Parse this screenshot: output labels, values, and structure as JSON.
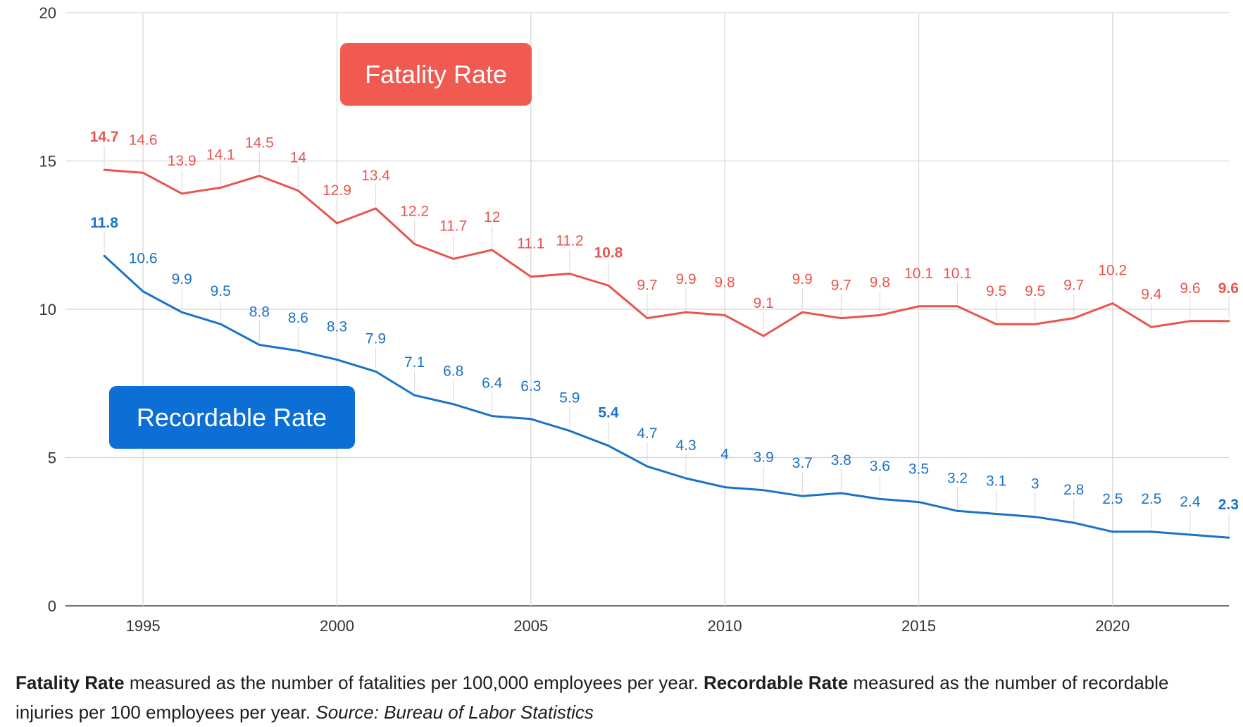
{
  "colors": {
    "fatality": "#e8554f",
    "recordable": "#1a73c8",
    "grid": "#d6d6d6",
    "axis": "#333333"
  },
  "chart_data": {
    "type": "line",
    "title": "",
    "xlabel": "",
    "ylabel": "",
    "x": [
      1994,
      1995,
      1996,
      1997,
      1998,
      1999,
      2000,
      2001,
      2002,
      2003,
      2004,
      2005,
      2006,
      2007,
      2008,
      2009,
      2010,
      2011,
      2012,
      2013,
      2014,
      2015,
      2016,
      2017,
      2018,
      2019,
      2020,
      2021,
      2022,
      2023
    ],
    "xlim": [
      1993,
      2023
    ],
    "ylim": [
      0,
      20
    ],
    "x_ticks": [
      1995,
      2000,
      2005,
      2010,
      2015,
      2020
    ],
    "y_ticks": [
      0,
      5,
      10,
      15,
      20
    ],
    "grid": true,
    "series": [
      {
        "name": "Fatality Rate",
        "color": "#e8554f",
        "values": [
          14.7,
          14.6,
          13.9,
          14.1,
          14.5,
          14,
          12.9,
          13.4,
          12.2,
          11.7,
          12,
          11.1,
          11.2,
          10.8,
          9.7,
          9.9,
          9.8,
          9.1,
          9.9,
          9.7,
          9.8,
          10.1,
          10.1,
          9.5,
          9.5,
          9.7,
          10.2,
          9.4,
          9.6,
          9.6
        ],
        "bold_labels": [
          1994,
          2007,
          2023
        ]
      },
      {
        "name": "Recordable Rate",
        "color": "#1a73c8",
        "values": [
          11.8,
          10.6,
          9.9,
          9.5,
          8.8,
          8.6,
          8.3,
          7.9,
          7.1,
          6.8,
          6.4,
          6.3,
          5.9,
          5.4,
          4.7,
          4.3,
          4,
          3.9,
          3.7,
          3.8,
          3.6,
          3.5,
          3.2,
          3.1,
          3,
          2.8,
          2.5,
          2.5,
          2.4,
          2.3
        ],
        "bold_labels": [
          1994,
          2007,
          2023
        ]
      }
    ]
  },
  "callouts": {
    "fatality": "Fatality Rate",
    "recordable": "Recordable Rate"
  },
  "caption": {
    "fatality_term": "Fatality Rate",
    "fatality_desc": " measured as the number of fatalities per 100,000 employees per year. ",
    "recordable_term": "Recordable Rate",
    "recordable_desc": " measured as the number of recordable injuries per 100 employees per year. ",
    "source": "Source: Bureau of Labor Statistics"
  }
}
